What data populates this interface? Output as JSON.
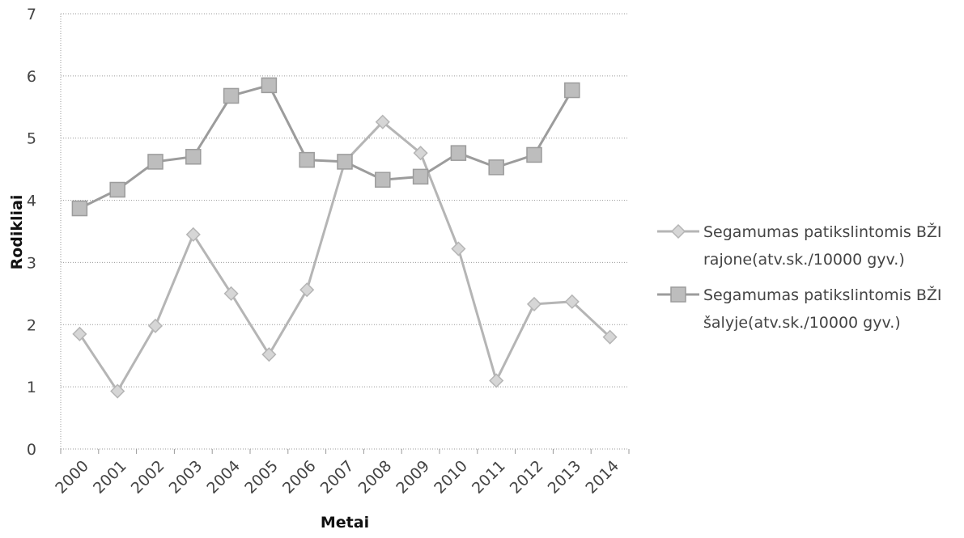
{
  "chart_data": {
    "type": "line",
    "title": "",
    "xlabel": "Metai",
    "ylabel": "Rodikliai",
    "ylim": [
      0,
      7
    ],
    "yticks": [
      0,
      1,
      2,
      3,
      4,
      5,
      6,
      7
    ],
    "grid": true,
    "legend_position": "right",
    "categories": [
      "2000",
      "2001",
      "2002",
      "2003",
      "2004",
      "2005",
      "2006",
      "2007",
      "2008",
      "2009",
      "2010",
      "2011",
      "2012",
      "2013",
      "2014"
    ],
    "series": [
      {
        "name": "Segamumas patikslintomis BŽI rajone(atv.sk./10000 gyv.)",
        "legend_lines": [
          "Segamumas patikslintomis BŽI",
          "rajone(atv.sk./10000 gyv.)"
        ],
        "marker": "diamond",
        "color": "#b5b5b5",
        "values": [
          1.85,
          0.93,
          1.98,
          3.45,
          2.5,
          1.52,
          2.56,
          4.62,
          5.26,
          4.76,
          3.22,
          1.1,
          2.33,
          2.37,
          1.8
        ]
      },
      {
        "name": "Segamumas patikslintomis BŽI šalyje(atv.sk./10000 gyv.)",
        "legend_lines": [
          "Segamumas patikslintomis BŽI",
          "šalyje(atv.sk./10000 gyv.)"
        ],
        "marker": "square",
        "color": "#9c9c9c",
        "values": [
          3.87,
          4.17,
          4.62,
          4.7,
          5.68,
          5.85,
          4.65,
          4.62,
          4.33,
          4.38,
          4.76,
          4.53,
          4.73,
          5.77,
          null
        ]
      }
    ]
  }
}
